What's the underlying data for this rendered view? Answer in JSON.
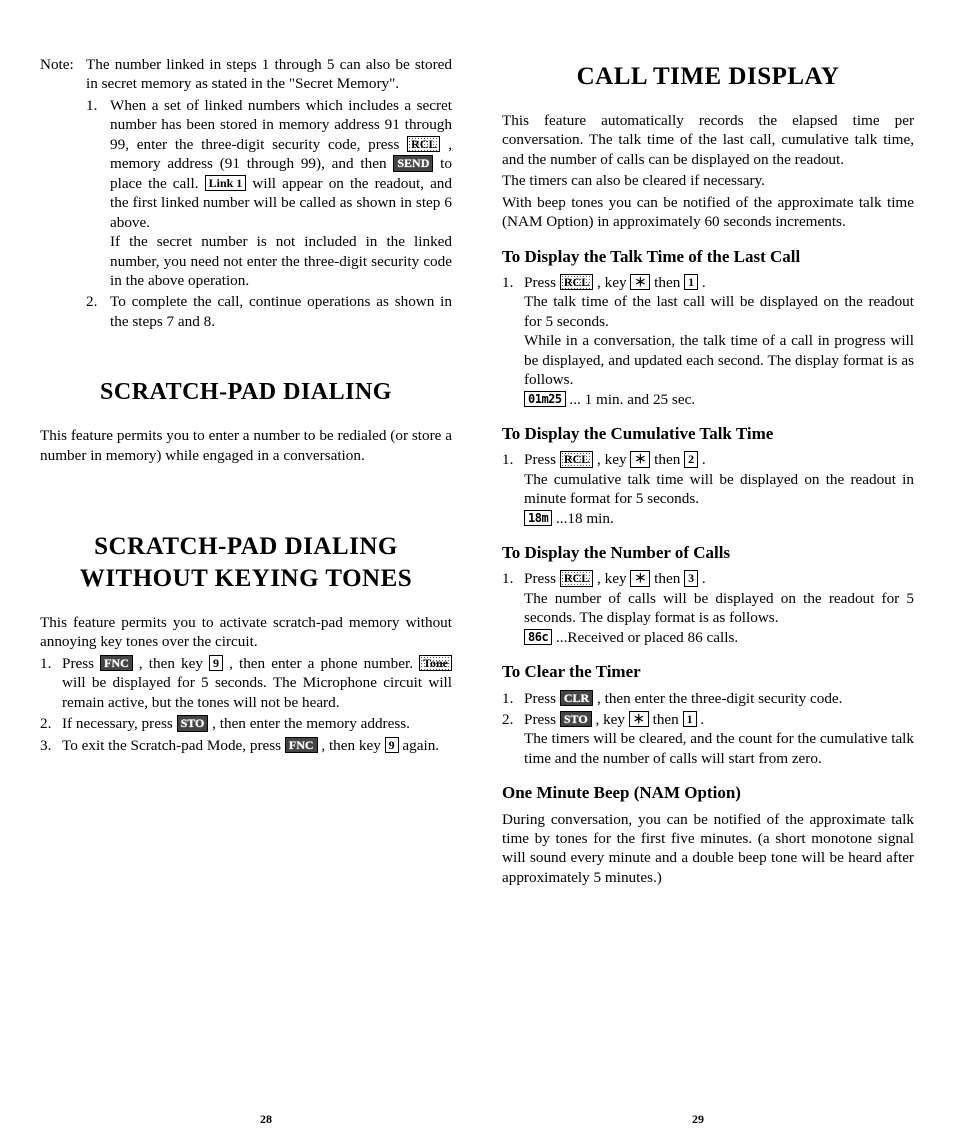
{
  "left": {
    "note_label": "Note:",
    "note_intro": "The number linked in steps 1 through 5 can also be stored in secret memory as stated in the \"Secret Memory\".",
    "sub1_a": "When a set of linked numbers which includes a secret number has been stored in memory address 91 through 99, enter the three-digit security code, press ",
    "sub1_b": " , memory address (91 through 99), and then ",
    "sub1_c": " to place the call. ",
    "sub1_d": " will appear on the readout, and the first linked number will be called as shown in step 6 above.",
    "sub1_e": "If the secret number is not included in the linked number, you need not enter the three-digit security code in the above operation.",
    "sub2": "To complete the call, continue operations as shown in the steps 7 and 8.",
    "h1_a": "SCRATCH-PAD DIALING",
    "p_a": "This feature permits you to enter a number to be redialed (or store a number in memory) while engaged in a conversation.",
    "h1_b": "SCRATCH-PAD DIALING WITHOUT KEYING TONES",
    "p_b": "This feature permits you to activate scratch-pad memory without annoying key tones over the circuit.",
    "wk1_a": "Press ",
    "wk1_b": " , then key ",
    "wk1_c": " , then enter a phone number. ",
    "wk1_d": " will be displayed for 5 seconds. The Microphone circuit will remain active, but the tones will not be heard.",
    "wk2_a": "If necessary, press ",
    "wk2_b": " , then enter the memory address.",
    "wk3_a": "To exit the Scratch-pad Mode, press ",
    "wk3_b": " , then key ",
    "wk3_c": " again.",
    "page": "28"
  },
  "right": {
    "h1": "CALL TIME DISPLAY",
    "p1": "This feature automatically records the elapsed time per conversation. The talk time of the last call, cumulative talk time, and the number of calls can be displayed on the readout.",
    "p2": "The timers can also be cleared if necessary.",
    "p3": "With beep tones you can be notified of the approximate talk time (NAM Option) in approximately 60 seconds increments.",
    "h2_a": "To Display the Talk Time of the Last Call",
    "a1_a": "Press ",
    "a1_b": " , key ",
    "a1_c": " then ",
    "a1_d": " .",
    "a1_e": "The talk time of the last call will be displayed on the readout for 5 seconds.",
    "a1_f": "While in a conversation, the talk time of a call in progress will be displayed, and updated each second. The display format is as follows.",
    "a1_g": " ... 1 min. and 25 sec.",
    "h2_b": "To Display the Cumulative Talk Time",
    "b1_a": "Press ",
    "b1_b": " , key ",
    "b1_c": " then ",
    "b1_d": " .",
    "b1_e": "The cumulative talk time will be displayed on the readout in minute format for 5 seconds.",
    "b1_f": " ...18 min.",
    "h2_c": "To Display the Number of Calls",
    "c1_a": "Press ",
    "c1_b": " , key ",
    "c1_c": " then ",
    "c1_d": " .",
    "c1_e": "The number of calls will be displayed on the readout for 5 seconds. The display format is as follows.",
    "c1_f": " ...Received or placed 86 calls.",
    "h2_d": "To Clear the Timer",
    "d1_a": "Press ",
    "d1_b": " , then enter the three-digit security code.",
    "d2_a": "Press ",
    "d2_b": " , key ",
    "d2_c": " then ",
    "d2_d": " .",
    "d2_e": "The timers will be cleared, and the count for the cumulative talk time and the number of calls will start from zero.",
    "h2_e": "One Minute Beep  (NAM Option)",
    "p_e": "During conversation, you can be notified of the approximate talk time by tones for the first five minutes. (a short monotone signal will sound every minute and a double beep tone will be heard after approximately 5 minutes.)",
    "page": "29"
  },
  "keys": {
    "RCL": "RCL",
    "SEND": "SEND",
    "Link1": "Link 1",
    "FNC": "FNC",
    "nine": "9",
    "Tone": "Tone",
    "STO": "STO",
    "star": "＊",
    "one": "1",
    "two": "2",
    "three": "3",
    "CLR": "CLR",
    "m01m25": "01m25",
    "m18m": "18m",
    "c86c": "86c"
  }
}
